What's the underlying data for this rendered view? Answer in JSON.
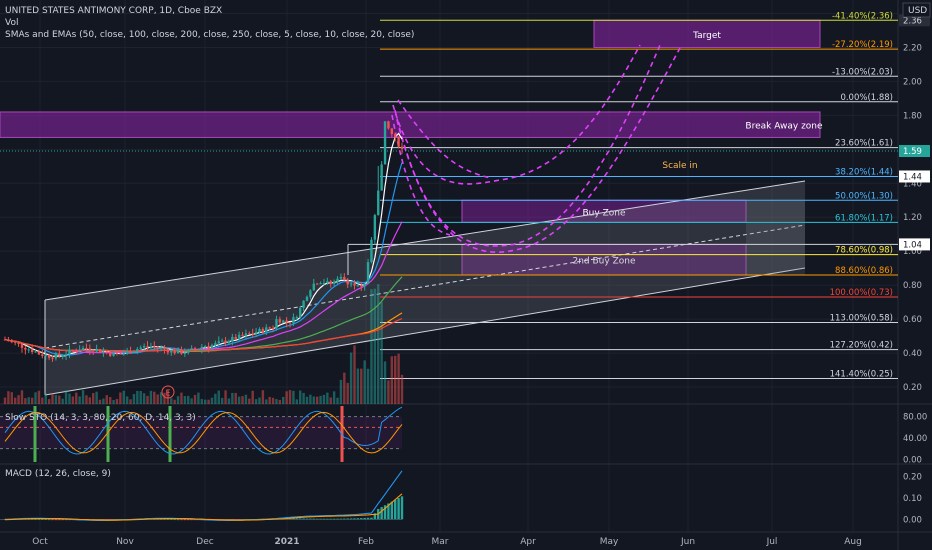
{
  "header": {
    "symbol": "UNITED STATES ANTIMONY CORP, 1D, Cboe BZX",
    "vol": "Vol",
    "indicators": "SMAs and EMAs (50, close, 100, close, 200, close, 250, close, 5, close, 10, close, 20, close)",
    "currency": "USD"
  },
  "colors": {
    "bg": "#131722",
    "grid": "#2a2e39",
    "up": "#26a69a",
    "down": "#ef5350",
    "purple_zone": "#8e24aa",
    "magenta": "#e040fb",
    "white": "#d1d4dc"
  },
  "chart_data": [
    {
      "type": "candlestick",
      "title": "UNITED STATES ANTIMONY CORP, 1D, Cboe BZX",
      "x_tick_labels": [
        "Oct",
        "Nov",
        "Dec",
        "2021",
        "Feb",
        "Mar",
        "Apr",
        "May",
        "Jun",
        "Jul",
        "Aug"
      ],
      "y_tick_labels": [
        "2.40",
        "2.20",
        "2.00",
        "1.80",
        "1.60",
        "1.40",
        "1.20",
        "1.00",
        "0.80",
        "0.60",
        "0.40",
        "0.20"
      ],
      "ylim": [
        0.1,
        2.45
      ],
      "price_scale_markers": [
        {
          "value": 2.36,
          "label": "2.36",
          "style": "dark"
        },
        {
          "value": 1.59,
          "label": "1.59",
          "style": "green"
        },
        {
          "value": 1.44,
          "label": "1.44",
          "style": "white"
        },
        {
          "value": 1.04,
          "label": "1.04",
          "style": "white"
        }
      ],
      "fibonacci_levels": [
        {
          "label": "-41.40%(2.36)",
          "value": 2.36,
          "color": "#cddc39"
        },
        {
          "label": "-27.20%(2.19)",
          "value": 2.19,
          "color": "#ff9800"
        },
        {
          "label": "-13.00%(2.03)",
          "value": 2.03,
          "color": "#d1d4dc"
        },
        {
          "label": "0.00%(1.88)",
          "value": 1.88,
          "color": "#d1d4dc"
        },
        {
          "label": "23.60%(1.61)",
          "value": 1.61,
          "color": "#d1d4dc"
        },
        {
          "label": "38.20%(1.44)",
          "value": 1.44,
          "color": "#4db6ff"
        },
        {
          "label": "50.00%(1.30)",
          "value": 1.3,
          "color": "#4db6ff"
        },
        {
          "label": "61.80%(1.17)",
          "value": 1.17,
          "color": "#26c6da"
        },
        {
          "label": "78.60%(0.98)",
          "value": 0.98,
          "color": "#ffeb3b"
        },
        {
          "label": "88.60%(0.86)",
          "value": 0.86,
          "color": "#ff9800"
        },
        {
          "label": "100.00%(0.73)",
          "value": 0.73,
          "color": "#f44336"
        },
        {
          "label": "113.00%(0.58)",
          "value": 0.58,
          "color": "#d1d4dc"
        },
        {
          "label": "127.20%(0.42)",
          "value": 0.42,
          "color": "#d1d4dc"
        },
        {
          "label": "141.40%(0.25)",
          "value": 0.25,
          "color": "#d1d4dc"
        }
      ],
      "zones": [
        {
          "label": "Target",
          "from": 2.2,
          "to": 2.36
        },
        {
          "label": "Break Away zone",
          "from": 1.67,
          "to": 1.82
        },
        {
          "label": "Buy Zone",
          "from": 1.17,
          "to": 1.3
        },
        {
          "label": "2nd Buy Zone",
          "from": 0.86,
          "to": 1.04
        }
      ],
      "annotations": [
        "Scale in",
        "E"
      ]
    },
    {
      "type": "line",
      "title": "Slow STO (14, 3, 3, 80, 20, 60, D, 14, 3, 3)",
      "y_tick_labels": [
        "80.00",
        "40.00",
        "0.00"
      ],
      "ylim": [
        -5,
        100
      ]
    },
    {
      "type": "line",
      "title": "MACD (12, 26, close, 9)",
      "y_tick_labels": [
        "0.20",
        "0.10",
        "0.00"
      ],
      "ylim": [
        -0.05,
        0.25
      ]
    }
  ]
}
